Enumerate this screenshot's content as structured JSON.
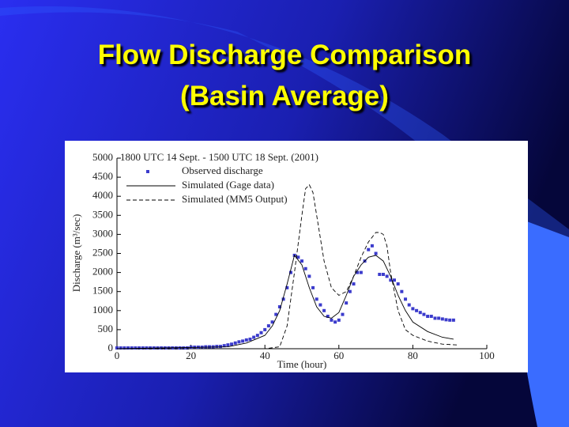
{
  "slide_title": [
    "Flow Discharge Comparison",
    "(Basin Average)"
  ],
  "chart_data": {
    "type": "scatter-line",
    "title": "1800 UTC 14 Sept. - 1500 UTC 18 Sept. (2001)",
    "x_label": "Time (hour)",
    "y_label": "Discharge (m³/sec)",
    "xlim": [
      0,
      100
    ],
    "xticks": [
      0,
      20,
      40,
      60,
      80,
      100
    ],
    "ylim": [
      0,
      5000
    ],
    "yticks": [
      0,
      500,
      1000,
      1500,
      2000,
      2500,
      3000,
      3500,
      4000,
      4500,
      5000
    ],
    "series": [
      {
        "name": "Observed discharge",
        "color": "#3b3bcc",
        "style": "markers",
        "x": [
          0,
          1,
          2,
          3,
          4,
          5,
          6,
          7,
          8,
          9,
          10,
          11,
          12,
          13,
          14,
          15,
          16,
          17,
          18,
          19,
          20,
          21,
          22,
          23,
          24,
          25,
          26,
          27,
          28,
          29,
          30,
          31,
          32,
          33,
          34,
          35,
          36,
          37,
          38,
          39,
          40,
          41,
          42,
          43,
          44,
          45,
          46,
          47,
          48,
          49,
          50,
          51,
          52,
          53,
          54,
          55,
          56,
          57,
          58,
          59,
          60,
          61,
          62,
          63,
          64,
          65,
          66,
          67,
          68,
          69,
          70,
          71,
          72,
          73,
          74,
          75,
          76,
          77,
          78,
          79,
          80,
          81,
          82,
          83,
          84,
          85,
          86,
          87,
          88,
          89,
          90,
          91
        ],
        "values": [
          20,
          20,
          20,
          20,
          20,
          20,
          20,
          20,
          20,
          20,
          20,
          20,
          20,
          20,
          20,
          20,
          20,
          20,
          20,
          20,
          40,
          40,
          40,
          40,
          50,
          50,
          50,
          60,
          60,
          80,
          100,
          120,
          150,
          180,
          200,
          230,
          250,
          300,
          350,
          420,
          500,
          600,
          700,
          900,
          1100,
          1300,
          1600,
          2000,
          2450,
          2400,
          2300,
          2100,
          1900,
          1600,
          1300,
          1150,
          1000,
          850,
          750,
          700,
          750,
          900,
          1200,
          1500,
          1700,
          2000,
          2000,
          2300,
          2600,
          2700,
          2500,
          1950,
          1950,
          1900,
          1800,
          1800,
          1700,
          1500,
          1300,
          1150,
          1050,
          1000,
          950,
          900,
          850,
          850,
          800,
          800,
          780,
          760,
          750,
          750
        ]
      },
      {
        "name": "Simulated (Gage data)",
        "color": "#000000",
        "style": "solid",
        "x": [
          0,
          30,
          35,
          40,
          42,
          44,
          46,
          48,
          50,
          52,
          54,
          56,
          58,
          60,
          62,
          64,
          66,
          68,
          70,
          72,
          74,
          76,
          78,
          80,
          84,
          88,
          91
        ],
        "values": [
          0,
          50,
          150,
          350,
          600,
          1000,
          1700,
          2450,
          2200,
          1600,
          1100,
          850,
          800,
          950,
          1400,
          1900,
          2200,
          2400,
          2450,
          2300,
          1900,
          1400,
          1000,
          700,
          450,
          300,
          250
        ]
      },
      {
        "name": "Simulated (MM5 Output)",
        "color": "#000000",
        "style": "dashed",
        "x": [
          0,
          40,
          44,
          46,
          48,
          50,
          51,
          52,
          53,
          54,
          56,
          58,
          60,
          62,
          64,
          66,
          68,
          70,
          71,
          72,
          73,
          74,
          76,
          78,
          80,
          84,
          88,
          92
        ],
        "values": [
          0,
          0,
          50,
          600,
          2000,
          3500,
          4200,
          4300,
          4100,
          3500,
          2300,
          1600,
          1400,
          1500,
          1900,
          2400,
          2800,
          3050,
          3050,
          3000,
          2700,
          2000,
          1000,
          500,
          350,
          200,
          120,
          100
        ]
      }
    ]
  }
}
